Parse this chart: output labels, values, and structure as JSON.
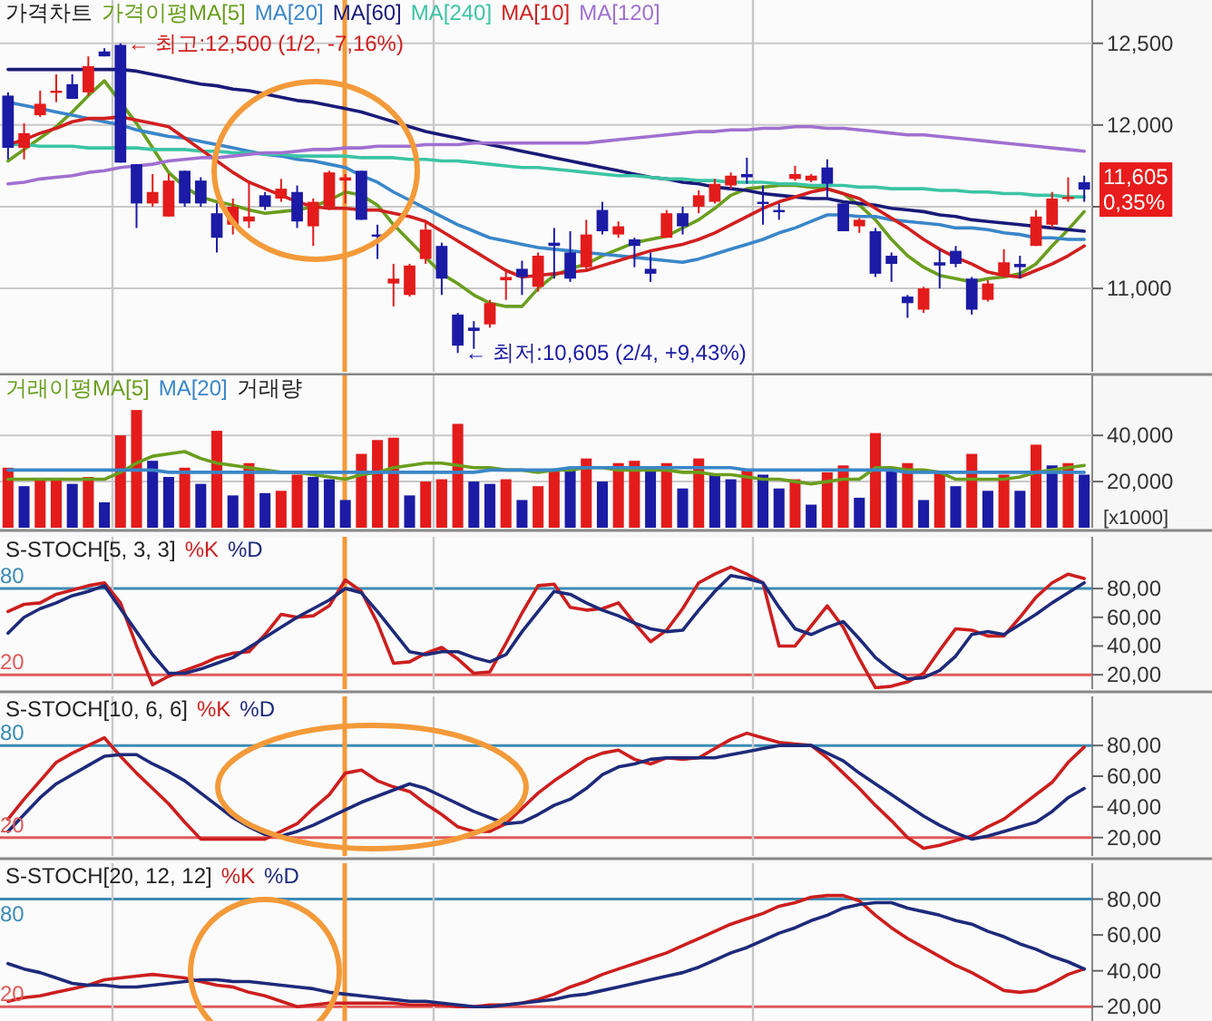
{
  "chart_data": [
    {
      "type": "candlestick",
      "title": "가격차트",
      "legend": "top left",
      "grid": "y",
      "tick_labels": "y",
      "categories": [
        null,
        null,
        null,
        null,
        null,
        null,
        null,
        null,
        null,
        null,
        null,
        null,
        null,
        null,
        null,
        null,
        null,
        null,
        null,
        null,
        null,
        null,
        null,
        null,
        null,
        null,
        null,
        null,
        null,
        null,
        null,
        null,
        null,
        null,
        null,
        null,
        null,
        null,
        null,
        null,
        null,
        null,
        null,
        null,
        null,
        null,
        null,
        null,
        null,
        null,
        null,
        null,
        null,
        null,
        null,
        null,
        null,
        null,
        null,
        null,
        null,
        null,
        null,
        null,
        null,
        null,
        null,
        null
      ],
      "ohlc": [
        [
          12180,
          12200,
          11790,
          11860
        ],
        [
          11860,
          12010,
          11790,
          11950
        ],
        [
          12060,
          12210,
          12050,
          12130
        ],
        [
          12200,
          12310,
          12140,
          12210
        ],
        [
          12250,
          12310,
          12160,
          12160
        ],
        [
          12200,
          12420,
          12180,
          12360
        ],
        [
          12450,
          12470,
          12420,
          12420
        ],
        [
          12490,
          12500,
          11770,
          11770
        ],
        [
          11760,
          11760,
          11370,
          11520
        ],
        [
          11520,
          11700,
          11500,
          11590
        ],
        [
          11440,
          11700,
          11440,
          11660
        ],
        [
          11720,
          11720,
          11500,
          11520
        ],
        [
          11660,
          11680,
          11500,
          11520
        ],
        [
          11460,
          11520,
          11220,
          11310
        ],
        [
          11390,
          11550,
          11330,
          11500
        ],
        [
          11410,
          11660,
          11370,
          11440
        ],
        [
          11570,
          11590,
          11480,
          11500
        ],
        [
          11550,
          11670,
          11530,
          11610
        ],
        [
          11590,
          11630,
          11370,
          11410
        ],
        [
          11380,
          11550,
          11260,
          11530
        ],
        [
          11500,
          11720,
          11480,
          11710
        ],
        [
          11660,
          11700,
          11520,
          11680
        ],
        [
          11720,
          11720,
          11420,
          11420
        ],
        [
          11330,
          11390,
          11180,
          11320
        ],
        [
          11030,
          11150,
          10890,
          11060
        ],
        [
          10960,
          11150,
          10950,
          11140
        ],
        [
          11180,
          11410,
          11150,
          11360
        ],
        [
          11260,
          11280,
          10960,
          11060
        ],
        [
          10840,
          10850,
          10605,
          10650
        ],
        [
          10760,
          10800,
          10630,
          10740
        ],
        [
          10780,
          10930,
          10760,
          10910
        ],
        [
          11050,
          11110,
          10930,
          11070
        ],
        [
          11120,
          11170,
          10960,
          11070
        ],
        [
          11010,
          11220,
          10980,
          11200
        ],
        [
          11280,
          11370,
          11060,
          11260
        ],
        [
          11220,
          11350,
          11040,
          11060
        ],
        [
          11130,
          11420,
          11110,
          11330
        ],
        [
          11480,
          11530,
          11330,
          11350
        ],
        [
          11330,
          11410,
          11310,
          11380
        ],
        [
          11300,
          11310,
          11130,
          11260
        ],
        [
          11120,
          11220,
          11040,
          11090
        ],
        [
          11310,
          11480,
          11310,
          11460
        ],
        [
          11460,
          11500,
          11330,
          11380
        ],
        [
          11500,
          11600,
          11460,
          11570
        ],
        [
          11530,
          11670,
          11520,
          11640
        ],
        [
          11630,
          11710,
          11610,
          11690
        ],
        [
          11700,
          11800,
          11640,
          11680
        ],
        [
          11530,
          11630,
          11390,
          11520
        ],
        [
          11480,
          11520,
          11420,
          11470
        ],
        [
          11670,
          11750,
          11660,
          11700
        ],
        [
          11660,
          11700,
          11650,
          11690
        ],
        [
          11740,
          11790,
          11550,
          11640
        ],
        [
          11520,
          11520,
          11350,
          11350
        ],
        [
          11380,
          11430,
          11340,
          11420
        ],
        [
          11350,
          11370,
          11070,
          11090
        ],
        [
          11200,
          11220,
          11040,
          11150
        ],
        [
          10950,
          10960,
          10820,
          10910
        ],
        [
          10870,
          11010,
          10850,
          11000
        ],
        [
          11160,
          11240,
          11000,
          11140
        ],
        [
          11230,
          11260,
          11130,
          11150
        ],
        [
          11060,
          11070,
          10840,
          10870
        ],
        [
          10930,
          11050,
          10920,
          11030
        ],
        [
          11080,
          11240,
          11070,
          11160
        ],
        [
          11150,
          11200,
          11060,
          11130
        ],
        [
          11260,
          11480,
          11260,
          11440
        ],
        [
          11390,
          11590,
          11370,
          11550
        ],
        [
          11550,
          11680,
          11530,
          11560
        ],
        [
          11650,
          11690,
          11530,
          11605
        ]
      ],
      "colors": [
        "#1b1ba5",
        "#e31b1b",
        "#e31b1b",
        "#e31b1b",
        "#1b1ba5",
        "#e31b1b",
        "#1b1ba5",
        "#1b1ba5",
        "#1b1ba5",
        "#e31b1b",
        "#e31b1b",
        "#1b1ba5",
        "#1b1ba5",
        "#1b1ba5",
        "#e31b1b",
        "#e31b1b",
        "#1b1ba5",
        "#e31b1b",
        "#1b1ba5",
        "#e31b1b",
        "#e31b1b",
        "#e31b1b",
        "#1b1ba5",
        "#1b1ba5",
        "#e31b1b",
        "#e31b1b",
        "#e31b1b",
        "#1b1ba5",
        "#1b1ba5",
        "#1b1ba5",
        "#e31b1b",
        "#e31b1b",
        "#1b1ba5",
        "#e31b1b",
        "#1b1ba5",
        "#1b1ba5",
        "#e31b1b",
        "#1b1ba5",
        "#e31b1b",
        "#1b1ba5",
        "#1b1ba5",
        "#e31b1b",
        "#1b1ba5",
        "#e31b1b",
        "#e31b1b",
        "#e31b1b",
        "#1b1ba5",
        "#1b1ba5",
        "#1b1ba5",
        "#e31b1b",
        "#e31b1b",
        "#1b1ba5",
        "#1b1ba5",
        "#e31b1b",
        "#1b1ba5",
        "#1b1ba5",
        "#1b1ba5",
        "#e31b1b",
        "#1b1ba5",
        "#1b1ba5",
        "#1b1ba5",
        "#e31b1b",
        "#e31b1b",
        "#1b1ba5",
        "#e31b1b",
        "#e31b1b",
        "#e31b1b",
        "#1b1ba5"
      ],
      "series": [
        {
          "type": "line",
          "name": "가격이평MA[5]",
          "color": "#6a9e1e",
          "values": [
            11780,
            11850,
            11920,
            11990,
            12080,
            12180,
            12270,
            12140,
            12010,
            11860,
            11710,
            11620,
            11560,
            11530,
            11510,
            11480,
            11460,
            11470,
            11480,
            11500,
            11540,
            11590,
            11570,
            11510,
            11390,
            11290,
            11190,
            11090,
            11030,
            10960,
            10910,
            10890,
            10890,
            11000,
            11080,
            11120,
            11150,
            11200,
            11240,
            11280,
            11300,
            11320,
            11370,
            11420,
            11490,
            11570,
            11610,
            11620,
            11630,
            11630,
            11620,
            11610,
            11580,
            11510,
            11420,
            11300,
            11200,
            11130,
            11080,
            11060,
            11040,
            11060,
            11070,
            11090,
            11150,
            11260,
            11360,
            11470
          ]
        },
        {
          "type": "line",
          "name": "MA[20]",
          "color": "#3a86c8",
          "values": [
            12140,
            12120,
            12100,
            12080,
            12060,
            12040,
            12020,
            12000,
            11970,
            11950,
            11930,
            11920,
            11900,
            11880,
            11860,
            11840,
            11820,
            11810,
            11790,
            11780,
            11760,
            11740,
            11690,
            11650,
            11590,
            11540,
            11490,
            11440,
            11390,
            11350,
            11310,
            11290,
            11270,
            11250,
            11240,
            11230,
            11220,
            11210,
            11200,
            11190,
            11180,
            11170,
            11160,
            11180,
            11210,
            11240,
            11270,
            11300,
            11340,
            11370,
            11410,
            11450,
            11450,
            11440,
            11440,
            11420,
            11410,
            11400,
            11390,
            11370,
            11370,
            11360,
            11340,
            11330,
            11310,
            11310,
            11300,
            11300
          ]
        },
        {
          "type": "line",
          "name": "MA[60]",
          "color": "#1a1a78",
          "values": [
            12340,
            12340,
            12340,
            12340,
            12340,
            12340,
            12340,
            12340,
            12330,
            12310,
            12290,
            12270,
            12250,
            12240,
            12220,
            12210,
            12190,
            12170,
            12150,
            12140,
            12120,
            12100,
            12080,
            12050,
            12020,
            11990,
            11960,
            11940,
            11920,
            11900,
            11880,
            11860,
            11840,
            11820,
            11800,
            11780,
            11760,
            11740,
            11720,
            11700,
            11680,
            11670,
            11650,
            11640,
            11620,
            11610,
            11600,
            11580,
            11570,
            11560,
            11550,
            11550,
            11530,
            11520,
            11510,
            11490,
            11480,
            11470,
            11450,
            11440,
            11420,
            11410,
            11400,
            11390,
            11380,
            11370,
            11360,
            11350
          ]
        },
        {
          "type": "line",
          "name": "MA[240]",
          "color": "#3cc4a4",
          "values": [
            11880,
            11880,
            11870,
            11870,
            11870,
            11860,
            11860,
            11860,
            11860,
            11850,
            11850,
            11850,
            11840,
            11840,
            11830,
            11830,
            11820,
            11820,
            11810,
            11810,
            11810,
            11810,
            11800,
            11800,
            11800,
            11790,
            11790,
            11780,
            11780,
            11770,
            11760,
            11750,
            11740,
            11740,
            11730,
            11720,
            11710,
            11700,
            11690,
            11690,
            11680,
            11670,
            11670,
            11660,
            11660,
            11650,
            11650,
            11650,
            11640,
            11640,
            11630,
            11630,
            11630,
            11620,
            11620,
            11610,
            11610,
            11610,
            11600,
            11600,
            11590,
            11590,
            11580,
            11580,
            11570,
            11570,
            11560,
            11560
          ]
        },
        {
          "type": "line",
          "name": "MA[10]",
          "color": "#d02020",
          "values": [
            11880,
            11910,
            11950,
            11980,
            12020,
            12040,
            12040,
            12050,
            12030,
            12010,
            11990,
            11920,
            11850,
            11780,
            11710,
            11650,
            11610,
            11570,
            11530,
            11500,
            11490,
            11490,
            11480,
            11480,
            11460,
            11440,
            11410,
            11350,
            11290,
            11230,
            11170,
            11110,
            11070,
            11080,
            11090,
            11100,
            11110,
            11140,
            11170,
            11200,
            11230,
            11250,
            11270,
            11300,
            11340,
            11390,
            11440,
            11490,
            11530,
            11560,
            11590,
            11610,
            11580,
            11550,
            11490,
            11430,
            11370,
            11300,
            11240,
            11190,
            11150,
            11100,
            11080,
            11070,
            11110,
            11150,
            11200,
            11260
          ]
        },
        {
          "type": "line",
          "name": "MA[120]",
          "color": "#a070d0",
          "values": [
            11640,
            11650,
            11670,
            11680,
            11690,
            11710,
            11720,
            11740,
            11750,
            11760,
            11780,
            11790,
            11800,
            11800,
            11810,
            11820,
            11830,
            11830,
            11840,
            11850,
            11850,
            11860,
            11860,
            11870,
            11870,
            11870,
            11880,
            11880,
            11880,
            11890,
            11890,
            11890,
            11890,
            11890,
            11890,
            11890,
            11890,
            11900,
            11910,
            11920,
            11930,
            11940,
            11950,
            11960,
            11960,
            11970,
            11970,
            11980,
            11980,
            11990,
            11990,
            11980,
            11980,
            11970,
            11960,
            11950,
            11940,
            11940,
            11930,
            11920,
            11910,
            11900,
            11890,
            11880,
            11870,
            11860,
            11850,
            11840
          ]
        }
      ],
      "ylim": [
        10490,
        12765
      ],
      "yticks": [
        {
          "value": 11000,
          "label": "11,000"
        },
        {
          "value": 11500,
          "label": null
        },
        {
          "value": 12000,
          "label": "12,000"
        },
        {
          "value": 12500,
          "label": "12,500"
        }
      ],
      "annotations": [
        "← 최고:12,500 (1/2, -7,16%)",
        "← 최저:10,605 (2/4, +9,43%)",
        "11,605\n0,35%"
      ]
    },
    {
      "type": "bar",
      "legend": "top left",
      "grid": "y",
      "tick_labels": "y",
      "ylabel": "[x1000]",
      "categories": [
        null,
        null,
        null,
        null,
        null,
        null,
        null,
        null,
        null,
        null,
        null,
        null,
        null,
        null,
        null,
        null,
        null,
        null,
        null,
        null,
        null,
        null,
        null,
        null,
        null,
        null,
        null,
        null,
        null,
        null,
        null,
        null,
        null,
        null,
        null,
        null,
        null,
        null,
        null,
        null,
        null,
        null,
        null,
        null,
        null,
        null,
        null,
        null,
        null,
        null,
        null,
        null,
        null,
        null,
        null,
        null,
        null,
        null,
        null,
        null,
        null,
        null,
        null,
        null,
        null,
        null,
        null,
        null
      ],
      "series": [
        {
          "type": "line",
          "name": "거래이평MA[5]",
          "color": "#6a9e1e",
          "values": [
            21000,
            21000,
            21000,
            21000,
            21000,
            21000,
            21000,
            24000,
            28000,
            31000,
            32000,
            33000,
            30000,
            28000,
            27000,
            26000,
            25000,
            24000,
            24000,
            23000,
            22000,
            21000,
            23000,
            24000,
            26000,
            27000,
            28000,
            28000,
            27000,
            26000,
            26000,
            25000,
            25000,
            24000,
            25000,
            25000,
            26000,
            26000,
            25000,
            25000,
            25000,
            25000,
            24000,
            24000,
            23000,
            23000,
            22000,
            21000,
            21000,
            20000,
            19000,
            20000,
            21000,
            21000,
            26000,
            26000,
            25000,
            25000,
            24000,
            21000,
            21000,
            21000,
            21000,
            22000,
            24000,
            25000,
            26000,
            27000
          ]
        },
        {
          "type": "line",
          "name": "MA[20]",
          "color": "#3a86c8",
          "values": [
            25000,
            25000,
            25000,
            25000,
            25000,
            25000,
            25000,
            25000,
            25000,
            25000,
            24000,
            24000,
            24000,
            24000,
            24000,
            24000,
            24000,
            24000,
            24000,
            24000,
            24000,
            24000,
            24000,
            24000,
            24000,
            24000,
            24000,
            24000,
            24000,
            24000,
            25000,
            25000,
            25000,
            25000,
            25000,
            26000,
            26000,
            26000,
            26000,
            26000,
            26000,
            26000,
            26000,
            26000,
            26000,
            26000,
            25000,
            25000,
            25000,
            25000,
            25000,
            25000,
            25000,
            25000,
            25000,
            25000,
            24000,
            24000,
            24000,
            24000,
            24000,
            24000,
            24000,
            24000,
            24000,
            24000,
            24000,
            24000
          ]
        },
        {
          "type": "bar",
          "name": "거래량",
          "values": [
            26000,
            18000,
            21000,
            21000,
            19000,
            22000,
            11000,
            40000,
            51000,
            29000,
            22000,
            26000,
            19000,
            42000,
            14000,
            28000,
            15000,
            16000,
            23000,
            22000,
            21000,
            12000,
            32000,
            38000,
            39000,
            14000,
            20000,
            21000,
            45000,
            20000,
            19000,
            21000,
            12000,
            18000,
            25000,
            25000,
            30000,
            20000,
            28000,
            29000,
            26000,
            28000,
            17000,
            30000,
            23000,
            21000,
            25000,
            23000,
            17000,
            21000,
            10000,
            24000,
            27000,
            13000,
            41000,
            25000,
            28000,
            12000,
            24000,
            18000,
            32000,
            16000,
            23000,
            16000,
            36000,
            27000,
            28000,
            23000
          ],
          "colors": [
            "#e31b1b",
            "#1b1ba5",
            "#e31b1b",
            "#e31b1b",
            "#1b1ba5",
            "#e31b1b",
            "#1b1ba5",
            "#e31b1b",
            "#e31b1b",
            "#1b1ba5",
            "#1b1ba5",
            "#e31b1b",
            "#1b1ba5",
            "#e31b1b",
            "#1b1ba5",
            "#e31b1b",
            "#1b1ba5",
            "#e31b1b",
            "#e31b1b",
            "#1b1ba5",
            "#1b1ba5",
            "#1b1ba5",
            "#e31b1b",
            "#e31b1b",
            "#e31b1b",
            "#1b1ba5",
            "#e31b1b",
            "#e31b1b",
            "#e31b1b",
            "#1b1ba5",
            "#1b1ba5",
            "#e31b1b",
            "#1b1ba5",
            "#e31b1b",
            "#e31b1b",
            "#1b1ba5",
            "#e31b1b",
            "#1b1ba5",
            "#e31b1b",
            "#e31b1b",
            "#1b1ba5",
            "#e31b1b",
            "#1b1ba5",
            "#e31b1b",
            "#1b1ba5",
            "#1b1ba5",
            "#e31b1b",
            "#1b1ba5",
            "#1b1ba5",
            "#e31b1b",
            "#1b1ba5",
            "#e31b1b",
            "#e31b1b",
            "#1b1ba5",
            "#e31b1b",
            "#1b1ba5",
            "#e31b1b",
            "#1b1ba5",
            "#e31b1b",
            "#1b1ba5",
            "#e31b1b",
            "#1b1ba5",
            "#e31b1b",
            "#1b1ba5",
            "#e31b1b",
            "#1b1ba5",
            "#e31b1b",
            "#1b1ba5"
          ]
        }
      ],
      "ylim": [
        0,
        66000
      ],
      "yticks": [
        {
          "value": 20000,
          "label": "20,000"
        },
        {
          "value": 40000,
          "label": "40,000"
        }
      ]
    },
    {
      "type": "line",
      "title": "S-STOCH[5, 3, 3]",
      "legend": "top left",
      "tick_labels": "y",
      "categories": [
        null,
        null,
        null,
        null,
        null,
        null,
        null,
        null,
        null,
        null,
        null,
        null,
        null,
        null,
        null,
        null,
        null,
        null,
        null,
        null,
        null,
        null,
        null,
        null,
        null,
        null,
        null,
        null,
        null,
        null,
        null,
        null,
        null,
        null,
        null,
        null,
        null,
        null,
        null,
        null,
        null,
        null,
        null,
        null,
        null,
        null,
        null,
        null,
        null,
        null,
        null,
        null,
        null,
        null,
        null,
        null,
        null,
        null,
        null,
        null,
        null,
        null,
        null,
        null,
        null,
        null,
        null,
        null
      ],
      "series": [
        {
          "name": "%K",
          "color": "#cc1f1f",
          "values": [
            64,
            69,
            70,
            76,
            79,
            82,
            84,
            70,
            40,
            13,
            19,
            23,
            27,
            32,
            35,
            36,
            48,
            62,
            60,
            61,
            68,
            86,
            78,
            56,
            28,
            29,
            35,
            39,
            31,
            21,
            22,
            42,
            63,
            82,
            83,
            67,
            65,
            66,
            70,
            56,
            43,
            51,
            66,
            84,
            90,
            95,
            90,
            84,
            40,
            40,
            54,
            68,
            53,
            31,
            11,
            12,
            15,
            21,
            37,
            52,
            51,
            47,
            47,
            60,
            74,
            84,
            90,
            87
          ]
        },
        {
          "name": "%D",
          "color": "#1e2a7a",
          "values": [
            49,
            60,
            66,
            70,
            75,
            78,
            82,
            66,
            50,
            34,
            21,
            21,
            24,
            28,
            32,
            39,
            46,
            53,
            60,
            66,
            72,
            80,
            77,
            64,
            50,
            36,
            34,
            36,
            36,
            32,
            29,
            34,
            50,
            64,
            78,
            76,
            70,
            65,
            61,
            56,
            52,
            50,
            51,
            65,
            78,
            89,
            87,
            84,
            67,
            52,
            48,
            53,
            57,
            45,
            32,
            23,
            17,
            18,
            23,
            33,
            48,
            50,
            48,
            55,
            62,
            70,
            77,
            84
          ]
        }
      ],
      "ylim": [
        10,
        116
      ],
      "yticks": [
        {
          "value": 20,
          "label": "20,00"
        },
        {
          "value": 40,
          "label": "40,00"
        },
        {
          "value": 60,
          "label": "60,00"
        },
        {
          "value": 80,
          "label": "80,00"
        }
      ],
      "ref_lines": [
        {
          "axis": "y",
          "value": 80,
          "label": "80",
          "color": "#3c8cb4"
        },
        {
          "axis": "y",
          "value": 20,
          "label": "20",
          "color": "#e05a5a"
        }
      ]
    },
    {
      "type": "line",
      "title": "S-STOCH[10, 6, 6]",
      "legend": "top left",
      "tick_labels": "y",
      "categories": [
        null,
        null,
        null,
        null,
        null,
        null,
        null,
        null,
        null,
        null,
        null,
        null,
        null,
        null,
        null,
        null,
        null,
        null,
        null,
        null,
        null,
        null,
        null,
        null,
        null,
        null,
        null,
        null,
        null,
        null,
        null,
        null,
        null,
        null,
        null,
        null,
        null,
        null,
        null,
        null,
        null,
        null,
        null,
        null,
        null,
        null,
        null,
        null,
        null,
        null,
        null,
        null,
        null,
        null,
        null,
        null,
        null,
        null,
        null,
        null,
        null,
        null,
        null,
        null,
        null,
        null,
        null,
        null
      ],
      "series": [
        {
          "name": "%K",
          "color": "#cc1f1f",
          "values": [
            32,
            45,
            57,
            69,
            75,
            80,
            85,
            73,
            62,
            52,
            42,
            30,
            19,
            19,
            19,
            19,
            19,
            24,
            29,
            39,
            48,
            62,
            64,
            57,
            53,
            50,
            42,
            35,
            27,
            24,
            24,
            29,
            39,
            49,
            57,
            64,
            71,
            75,
            77,
            71,
            68,
            72,
            71,
            72,
            78,
            84,
            88,
            85,
            82,
            81,
            80,
            72,
            62,
            52,
            41,
            31,
            20,
            13,
            15,
            18,
            21,
            27,
            32,
            40,
            48,
            56,
            69,
            79
          ]
        },
        {
          "name": "%D",
          "color": "#1e2a7a",
          "values": [
            24,
            35,
            46,
            55,
            61,
            67,
            73,
            74,
            74,
            68,
            63,
            57,
            49,
            41,
            33,
            27,
            22,
            21,
            24,
            28,
            33,
            38,
            43,
            47,
            51,
            55,
            52,
            47,
            42,
            37,
            33,
            29,
            30,
            35,
            41,
            45,
            52,
            61,
            66,
            68,
            71,
            72,
            72,
            72,
            72,
            74,
            76,
            78,
            80,
            80,
            80,
            75,
            70,
            62,
            55,
            48,
            41,
            34,
            28,
            23,
            19,
            21,
            24,
            27,
            30,
            37,
            46,
            52
          ]
        }
      ],
      "ylim": [
        8,
        112
      ],
      "yticks": [
        {
          "value": 20,
          "label": "20,00"
        },
        {
          "value": 40,
          "label": "40,00"
        },
        {
          "value": 60,
          "label": "60,00"
        },
        {
          "value": 80,
          "label": "80,00"
        }
      ],
      "ref_lines": [
        {
          "axis": "y",
          "value": 80,
          "label": "80",
          "color": "#3c8cb4"
        },
        {
          "axis": "y",
          "value": 20,
          "label": "20",
          "color": "#e05a5a"
        }
      ]
    },
    {
      "type": "line",
      "title": "S-STOCH[20, 12, 12]",
      "legend": "top left",
      "tick_labels": "y",
      "categories": [
        null,
        null,
        null,
        null,
        null,
        null,
        null,
        null,
        null,
        null,
        null,
        null,
        null,
        null,
        null,
        null,
        null,
        null,
        null,
        null,
        null,
        null,
        null,
        null,
        null,
        null,
        null,
        null,
        null,
        null,
        null,
        null,
        null,
        null,
        null,
        null,
        null,
        null,
        null,
        null,
        null,
        null,
        null,
        null,
        null,
        null,
        null,
        null,
        null,
        null,
        null,
        null,
        null,
        null,
        null,
        null,
        null,
        null,
        null,
        null,
        null,
        null,
        null,
        null,
        null,
        null,
        null,
        null
      ],
      "series": [
        {
          "name": "%K",
          "color": "#cc1f1f",
          "values": [
            23,
            25,
            26,
            28,
            30,
            32,
            35,
            36,
            37,
            38,
            37,
            36,
            34,
            32,
            31,
            28,
            26,
            23,
            20,
            21,
            22,
            22,
            22,
            22,
            22,
            21,
            21,
            21,
            20,
            20,
            21,
            21,
            22,
            24,
            27,
            31,
            34,
            38,
            41,
            44,
            47,
            50,
            54,
            58,
            62,
            66,
            69,
            72,
            76,
            78,
            81,
            82,
            82,
            79,
            71,
            64,
            58,
            53,
            48,
            43,
            39,
            34,
            29,
            28,
            29,
            33,
            38,
            41
          ]
        },
        {
          "name": "%D",
          "color": "#1e2a7a",
          "values": [
            44,
            41,
            39,
            36,
            33,
            32,
            32,
            31,
            31,
            32,
            33,
            34,
            35,
            35,
            34,
            34,
            33,
            32,
            31,
            30,
            28,
            27,
            26,
            25,
            24,
            23,
            23,
            22,
            21,
            20,
            20,
            21,
            22,
            23,
            24,
            26,
            27,
            29,
            31,
            33,
            35,
            37,
            39,
            42,
            46,
            50,
            53,
            57,
            61,
            64,
            68,
            71,
            75,
            77,
            78,
            78,
            75,
            73,
            71,
            68,
            66,
            62,
            59,
            55,
            52,
            48,
            45,
            41
          ]
        }
      ],
      "ylim": [
        12,
        100
      ],
      "yticks": [
        {
          "value": 20,
          "label": "20,00"
        },
        {
          "value": 40,
          "label": "40,00"
        },
        {
          "value": 60,
          "label": "60,00"
        },
        {
          "value": 80,
          "label": "80,00"
        }
      ],
      "ref_lines": [
        {
          "axis": "y",
          "value": 80,
          "label": "80",
          "color": "#3c8cb4"
        },
        {
          "axis": "y",
          "value": 20,
          "label": "20",
          "color": "#e05a5a"
        }
      ]
    }
  ]
}
